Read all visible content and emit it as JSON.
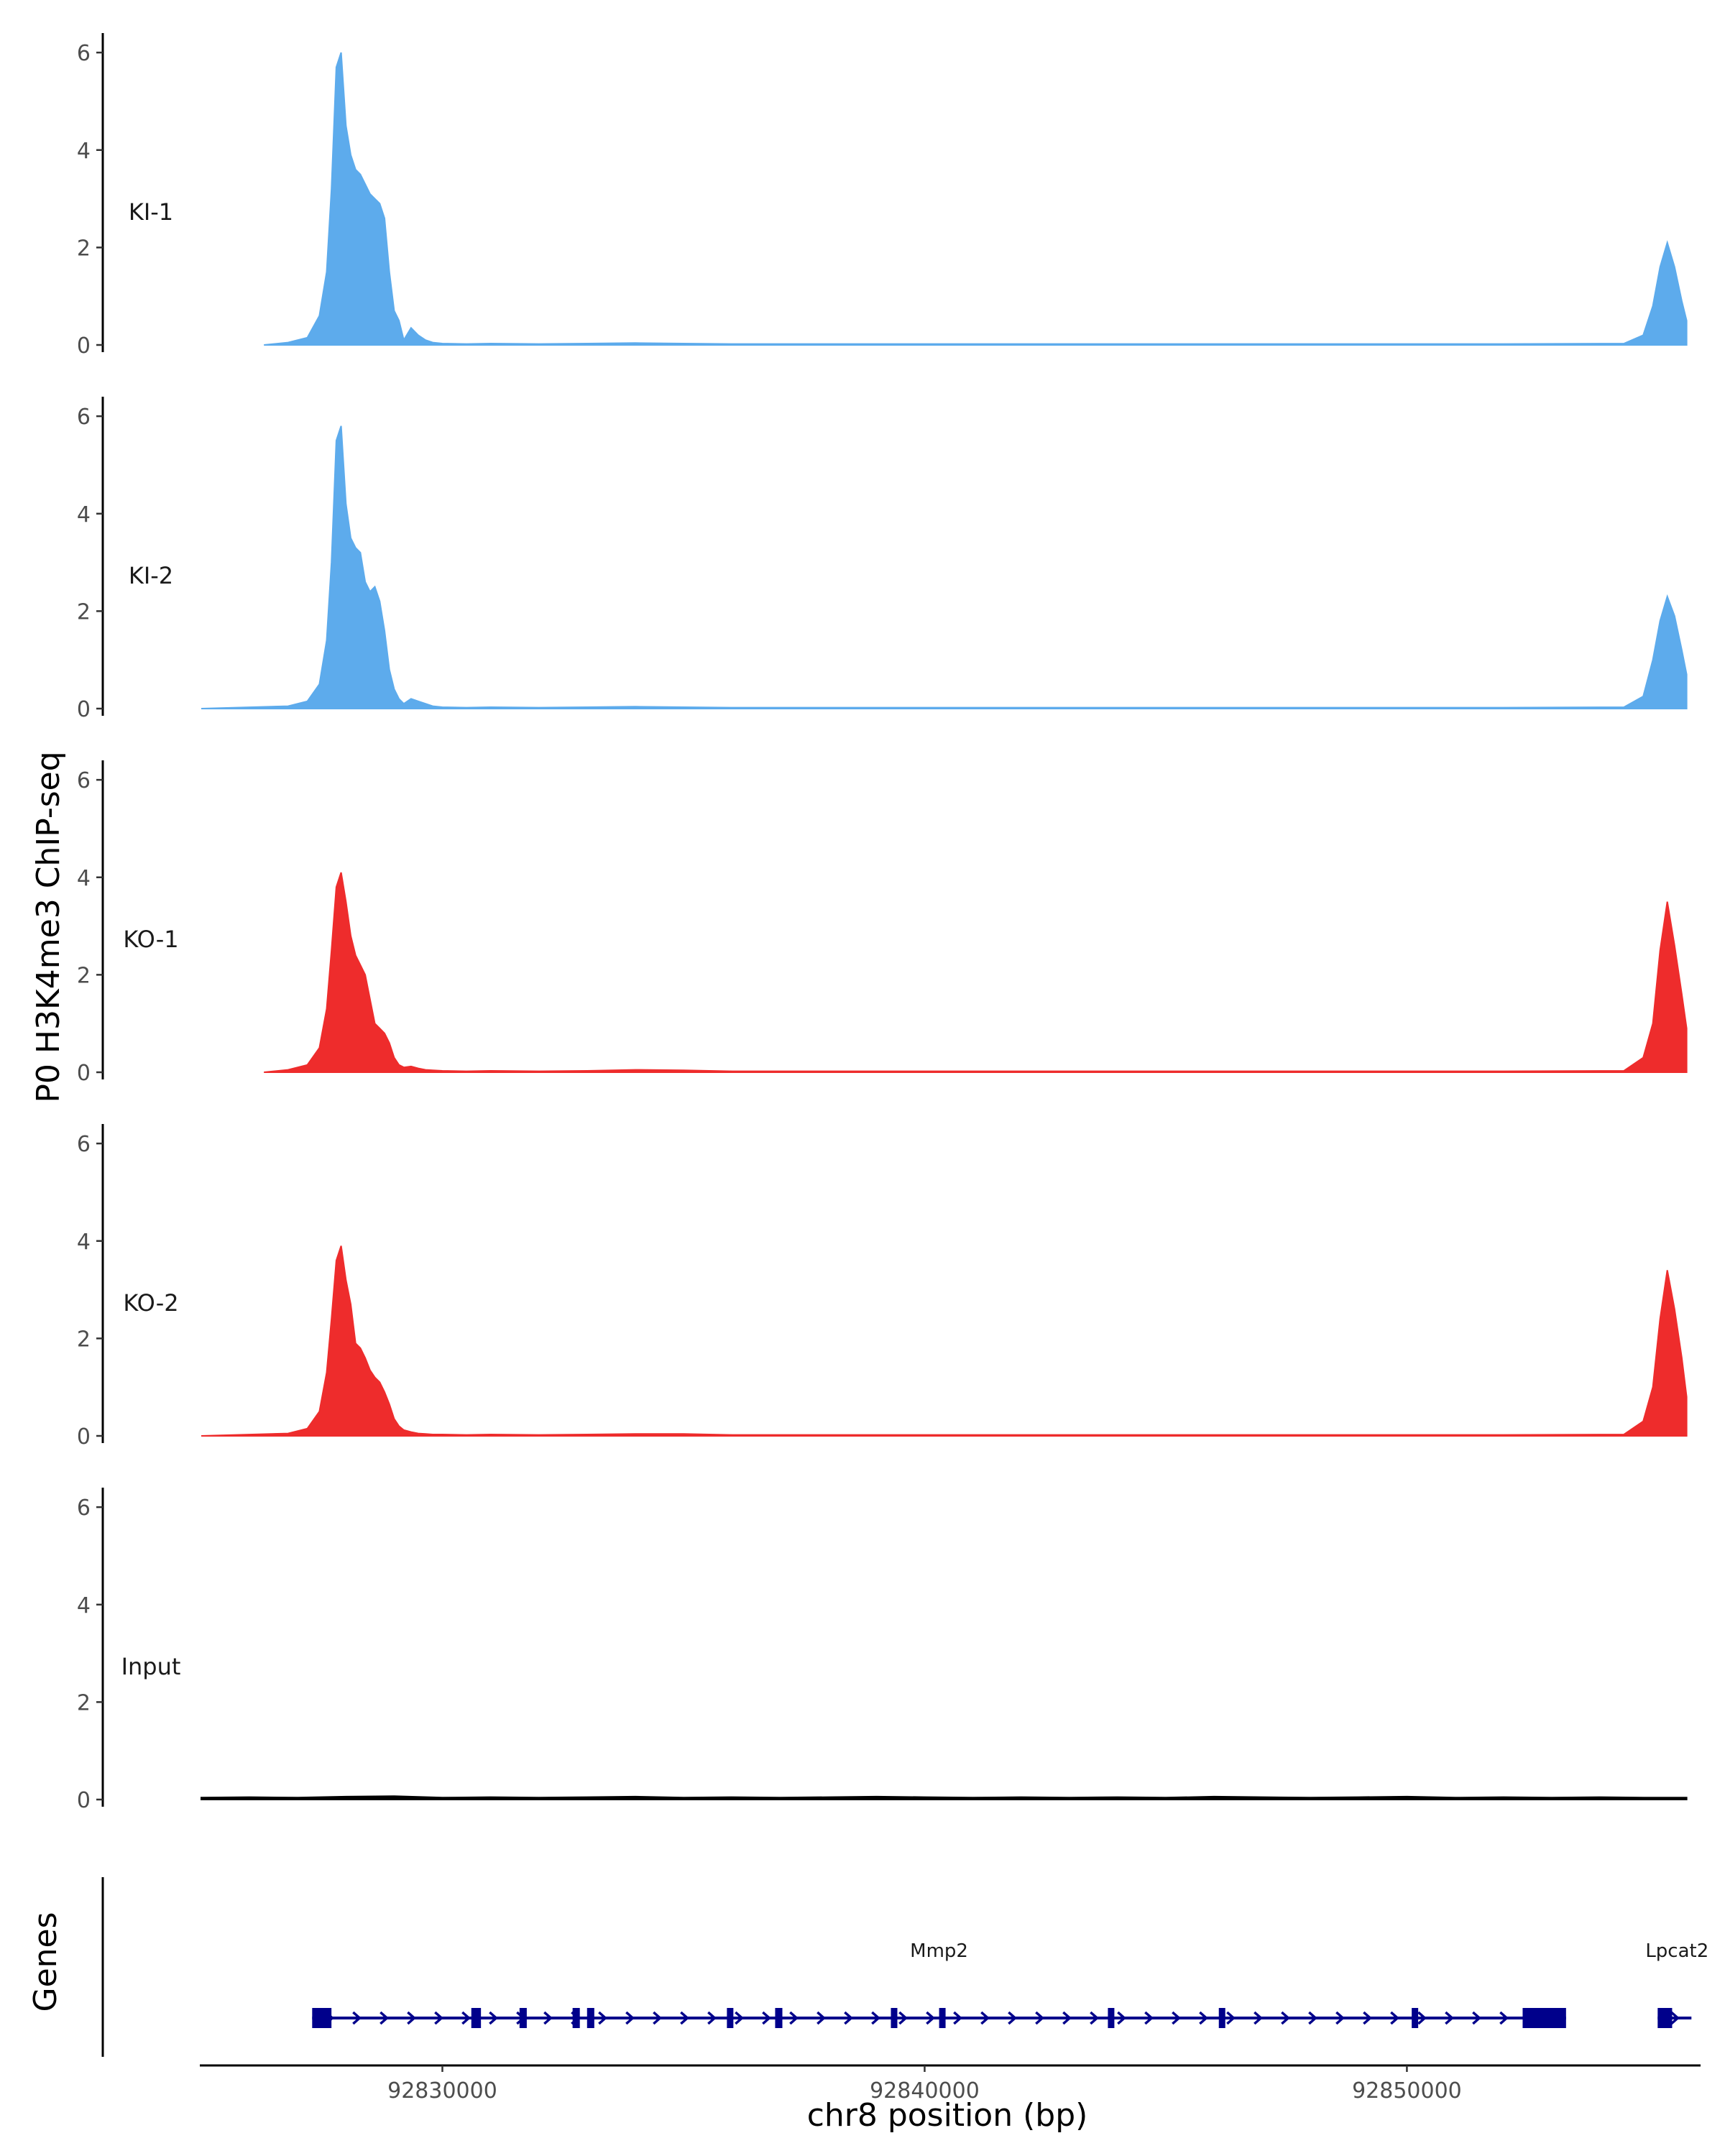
{
  "chart_data": {
    "type": "area",
    "ylabel": "P0 H3K4me3 ChIP-seq",
    "xlabel": "chr8 position (bp)",
    "gene_axis_label": "Genes",
    "xlim": [
      92825000,
      92856000
    ],
    "ylim": [
      0,
      6.4
    ],
    "y_ticks": [
      0,
      2,
      4,
      6
    ],
    "x_ticks": [
      92830000,
      92840000,
      92850000
    ],
    "x_tick_labels": [
      "92830000",
      "92840000",
      "92850000"
    ],
    "tracks": [
      {
        "name": "KI-1",
        "color": "#5dabec",
        "x": [
          92826300,
          92826800,
          92827200,
          92827450,
          92827600,
          92827700,
          92827800,
          92827900,
          92828000,
          92828100,
          92828200,
          92828300,
          92828400,
          92828500,
          92828600,
          92828700,
          92828800,
          92828900,
          92829000,
          92829100,
          92829200,
          92829350,
          92829500,
          92829650,
          92829800,
          92830000,
          92830500,
          92831000,
          92832000,
          92833000,
          92834000,
          92835000,
          92836000,
          92840000,
          92844000,
          92848000,
          92852000,
          92854500,
          92854900,
          92855100,
          92855250,
          92855400,
          92855550,
          92855700,
          92855800
        ],
        "values": [
          0,
          0.05,
          0.15,
          0.6,
          1.5,
          3.2,
          5.7,
          6.0,
          4.5,
          3.9,
          3.6,
          3.5,
          3.3,
          3.1,
          3.0,
          2.9,
          2.6,
          1.5,
          0.7,
          0.5,
          0.1,
          0.35,
          0.2,
          0.1,
          0.05,
          0.03,
          0.02,
          0.03,
          0.02,
          0.03,
          0.04,
          0.03,
          0.02,
          0.02,
          0.02,
          0.02,
          0.02,
          0.03,
          0.2,
          0.8,
          1.6,
          2.1,
          1.6,
          0.9,
          0.5
        ]
      },
      {
        "name": "KI-2",
        "color": "#5dabec",
        "x": [
          92825000,
          92826800,
          92827200,
          92827450,
          92827600,
          92827700,
          92827800,
          92827900,
          92828000,
          92828100,
          92828200,
          92828300,
          92828400,
          92828500,
          92828600,
          92828700,
          92828800,
          92828900,
          92829000,
          92829100,
          92829200,
          92829350,
          92829500,
          92829650,
          92829800,
          92830000,
          92830500,
          92831000,
          92832000,
          92833000,
          92834000,
          92835000,
          92836000,
          92840000,
          92844000,
          92848000,
          92852000,
          92854500,
          92854900,
          92855100,
          92855250,
          92855400,
          92855550,
          92855700,
          92855800
        ],
        "values": [
          0,
          0.05,
          0.15,
          0.5,
          1.4,
          3.0,
          5.5,
          5.8,
          4.2,
          3.5,
          3.3,
          3.2,
          2.6,
          2.4,
          2.5,
          2.2,
          1.6,
          0.8,
          0.4,
          0.2,
          0.1,
          0.2,
          0.15,
          0.1,
          0.05,
          0.03,
          0.02,
          0.03,
          0.02,
          0.03,
          0.04,
          0.03,
          0.02,
          0.02,
          0.02,
          0.02,
          0.02,
          0.03,
          0.25,
          1.0,
          1.8,
          2.3,
          1.9,
          1.2,
          0.7
        ]
      },
      {
        "name": "KO-1",
        "color": "#ee2c2c",
        "x": [
          92826300,
          92826800,
          92827200,
          92827450,
          92827600,
          92827700,
          92827800,
          92827900,
          92828000,
          92828100,
          92828200,
          92828300,
          92828400,
          92828500,
          92828600,
          92828700,
          92828800,
          92828900,
          92829000,
          92829100,
          92829200,
          92829350,
          92829500,
          92829650,
          92829800,
          92830000,
          92830500,
          92831000,
          92832000,
          92833000,
          92834000,
          92835000,
          92836000,
          92840000,
          92844000,
          92848000,
          92852000,
          92854500,
          92854900,
          92855100,
          92855250,
          92855400,
          92855550,
          92855700,
          92855800
        ],
        "values": [
          0,
          0.05,
          0.15,
          0.5,
          1.3,
          2.5,
          3.8,
          4.1,
          3.5,
          2.8,
          2.4,
          2.2,
          2.0,
          1.5,
          1.0,
          0.9,
          0.8,
          0.6,
          0.3,
          0.15,
          0.1,
          0.12,
          0.08,
          0.05,
          0.04,
          0.03,
          0.02,
          0.03,
          0.02,
          0.03,
          0.05,
          0.04,
          0.02,
          0.02,
          0.02,
          0.02,
          0.02,
          0.03,
          0.3,
          1.0,
          2.5,
          3.5,
          2.6,
          1.6,
          0.9
        ]
      },
      {
        "name": "KO-2",
        "color": "#ee2c2c",
        "x": [
          92825000,
          92826800,
          92827200,
          92827450,
          92827600,
          92827700,
          92827800,
          92827900,
          92828000,
          92828100,
          92828200,
          92828300,
          92828400,
          92828500,
          92828600,
          92828700,
          92828800,
          92828900,
          92829000,
          92829100,
          92829200,
          92829350,
          92829500,
          92829650,
          92829800,
          92830000,
          92830500,
          92831000,
          92832000,
          92833000,
          92834000,
          92835000,
          92836000,
          92840000,
          92844000,
          92848000,
          92852000,
          92854500,
          92854900,
          92855100,
          92855250,
          92855400,
          92855550,
          92855700,
          92855800
        ],
        "values": [
          0,
          0.05,
          0.15,
          0.5,
          1.3,
          2.4,
          3.6,
          3.9,
          3.2,
          2.7,
          1.9,
          1.8,
          1.6,
          1.35,
          1.2,
          1.1,
          0.9,
          0.65,
          0.35,
          0.2,
          0.12,
          0.08,
          0.05,
          0.04,
          0.03,
          0.03,
          0.02,
          0.03,
          0.02,
          0.03,
          0.04,
          0.04,
          0.02,
          0.02,
          0.02,
          0.02,
          0.02,
          0.03,
          0.3,
          1.0,
          2.4,
          3.4,
          2.6,
          1.6,
          0.8
        ]
      },
      {
        "name": "Input",
        "color": "#000000",
        "x": [
          92825000,
          92826000,
          92827000,
          92828000,
          92829000,
          92830000,
          92831000,
          92832000,
          92833000,
          92834000,
          92835000,
          92836000,
          92837000,
          92838000,
          92839000,
          92840000,
          92841000,
          92842000,
          92843000,
          92844000,
          92845000,
          92846000,
          92847000,
          92848000,
          92849000,
          92850000,
          92851000,
          92852000,
          92853000,
          92854000,
          92855000,
          92855800
        ],
        "values": [
          0.04,
          0.05,
          0.04,
          0.06,
          0.07,
          0.04,
          0.05,
          0.04,
          0.05,
          0.06,
          0.04,
          0.05,
          0.04,
          0.05,
          0.06,
          0.05,
          0.04,
          0.05,
          0.04,
          0.05,
          0.04,
          0.06,
          0.05,
          0.04,
          0.05,
          0.06,
          0.04,
          0.05,
          0.04,
          0.05,
          0.04,
          0.04
        ]
      }
    ],
    "genes": [
      {
        "name": "Mmp2",
        "start": 92827300,
        "end": 92853300,
        "strand": "+",
        "color": "#00008b",
        "exons": [
          [
            92827300,
            92827700
          ],
          [
            92830600,
            92830800
          ],
          [
            92831600,
            92831750
          ],
          [
            92832700,
            92832850
          ],
          [
            92833000,
            92833150
          ],
          [
            92835900,
            92836000
          ],
          [
            92836900,
            92837050
          ],
          [
            92839300,
            92839400
          ],
          [
            92840300,
            92840400
          ],
          [
            92843800,
            92843900
          ],
          [
            92846100,
            92846200
          ],
          [
            92850100,
            92850200
          ],
          [
            92852400,
            92853300
          ]
        ]
      },
      {
        "name": "Lpcat2",
        "start": 92855200,
        "end": 92855900,
        "strand": "+",
        "color": "#00008b",
        "exons": [
          [
            92855200,
            92855500
          ]
        ]
      }
    ]
  }
}
